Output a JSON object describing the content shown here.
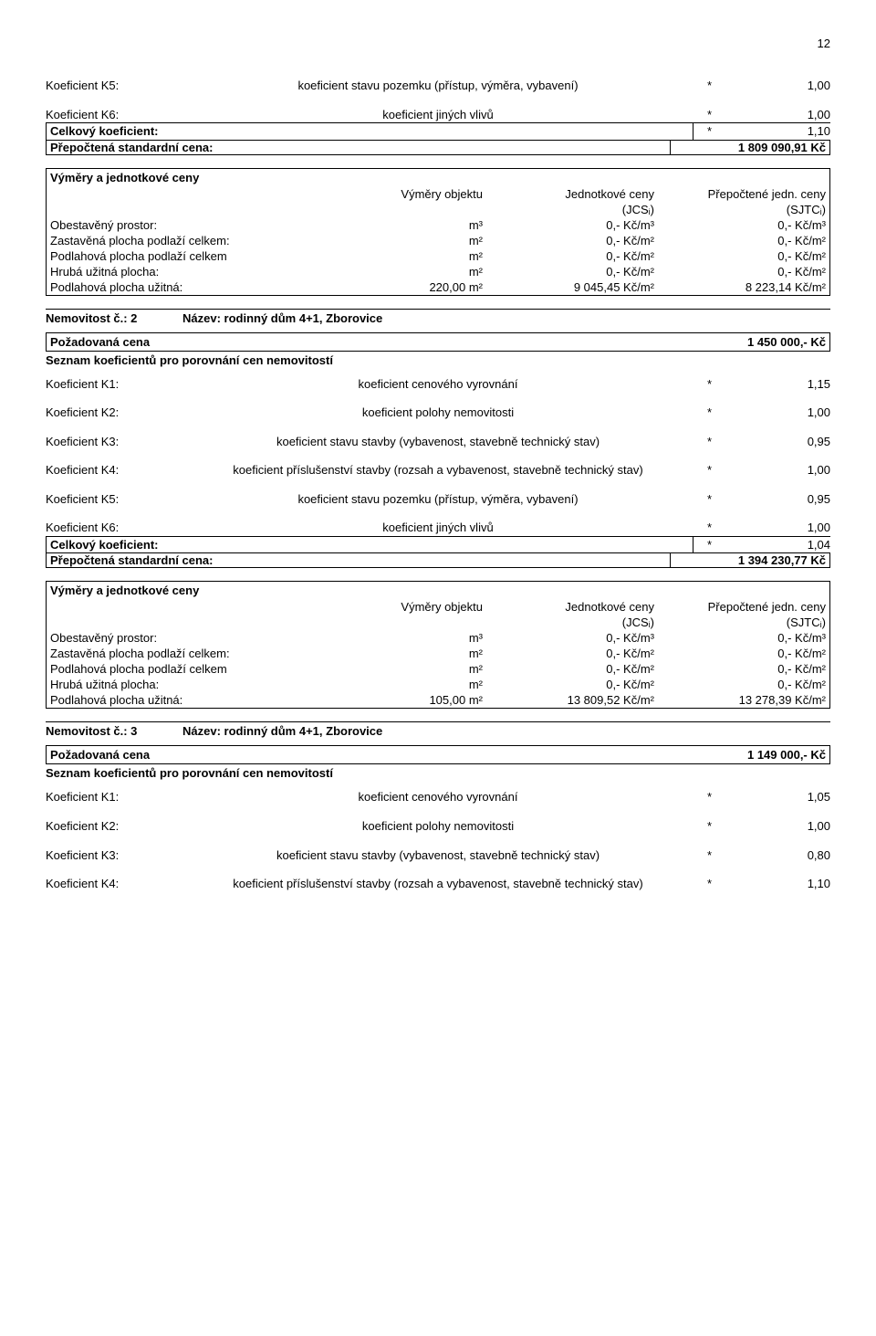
{
  "page_number": "12",
  "section1": {
    "k5": {
      "label": "Koeficient K5:",
      "desc": "koeficient stavu pozemku (přístup, výměra, vybavení)",
      "star": "*",
      "val": "1,00"
    },
    "k6": {
      "label": "Koeficient K6:",
      "desc": "koeficient jiných vlivů",
      "star": "*",
      "val": "1,00"
    },
    "ck": {
      "label": "Celkový koeficient:",
      "star": "*",
      "val": "1,10"
    },
    "psc": {
      "label": "Přepočtená standardní cena:",
      "val": "1 809 090,91 Kč"
    },
    "vm_title": "Výměry a jednotkové ceny",
    "head": {
      "obj": "Výměry objektu",
      "jc": "Jednotkové ceny",
      "jcs": "(JCSᵢ)",
      "pc": "Přepočtené jedn. ceny",
      "sj": "(SJTCᵢ)"
    },
    "rows": [
      {
        "n": "Obestavěný prostor:",
        "obj": "m³",
        "jc": "0,- Kč/m³",
        "pc": "0,- Kč/m³"
      },
      {
        "n": "Zastavěná plocha podlaží celkem:",
        "obj": "m²",
        "jc": "0,- Kč/m²",
        "pc": "0,- Kč/m²"
      },
      {
        "n": "Podlahová plocha podlaží celkem",
        "obj": "m²",
        "jc": "0,- Kč/m²",
        "pc": "0,- Kč/m²"
      },
      {
        "n": "Hrubá užitná plocha:",
        "obj": "m²",
        "jc": "0,- Kč/m²",
        "pc": "0,- Kč/m²"
      },
      {
        "n": "Podlahová plocha užitná:",
        "obj": "220,00 m²",
        "jc": "9 045,45 Kč/m²",
        "pc": "8 223,14 Kč/m²"
      }
    ]
  },
  "nemov2": {
    "left": "Nemovitost č.: 2",
    "right": "Název: rodinný dům 4+1, Zborovice"
  },
  "section2": {
    "pozad": {
      "label": "Požadovaná cena",
      "val": "1 450 000,- Kč"
    },
    "seznam": "Seznam koeficientů pro porovnání cen nemovitostí",
    "k1": {
      "label": "Koeficient K1:",
      "desc": "koeficient cenového vyrovnání",
      "star": "*",
      "val": "1,15"
    },
    "k2": {
      "label": "Koeficient K2:",
      "desc": "koeficient polohy nemovitosti",
      "star": "*",
      "val": "1,00"
    },
    "k3": {
      "label": "Koeficient K3:",
      "desc": "koeficient stavu stavby (vybavenost, stavebně technický stav)",
      "star": "*",
      "val": "0,95"
    },
    "k4": {
      "label": "Koeficient K4:",
      "desc": "koeficient příslušenství stavby (rozsah a vybavenost, stavebně technický stav)",
      "star": "*",
      "val": "1,00"
    },
    "k5": {
      "label": "Koeficient K5:",
      "desc": "koeficient stavu pozemku (přístup, výměra, vybavení)",
      "star": "*",
      "val": "0,95"
    },
    "k6": {
      "label": "Koeficient K6:",
      "desc": "koeficient jiných vlivů",
      "star": "*",
      "val": "1,00"
    },
    "ck": {
      "label": "Celkový koeficient:",
      "star": "*",
      "val": "1,04"
    },
    "psc": {
      "label": "Přepočtená standardní cena:",
      "val": "1 394 230,77 Kč"
    },
    "vm_title": "Výměry a jednotkové ceny",
    "rows": [
      {
        "n": "Obestavěný prostor:",
        "obj": "m³",
        "jc": "0,- Kč/m³",
        "pc": "0,- Kč/m³"
      },
      {
        "n": "Zastavěná plocha podlaží celkem:",
        "obj": "m²",
        "jc": "0,- Kč/m²",
        "pc": "0,- Kč/m²"
      },
      {
        "n": "Podlahová plocha podlaží celkem",
        "obj": "m²",
        "jc": "0,- Kč/m²",
        "pc": "0,- Kč/m²"
      },
      {
        "n": "Hrubá užitná plocha:",
        "obj": "m²",
        "jc": "0,- Kč/m²",
        "pc": "0,- Kč/m²"
      },
      {
        "n": "Podlahová plocha užitná:",
        "obj": "105,00 m²",
        "jc": "13 809,52 Kč/m²",
        "pc": "13 278,39 Kč/m²"
      }
    ]
  },
  "nemov3": {
    "left": "Nemovitost č.: 3",
    "right": "Název: rodinný dům 4+1, Zborovice"
  },
  "section3": {
    "pozad": {
      "label": "Požadovaná cena",
      "val": "1 149 000,- Kč"
    },
    "seznam": "Seznam koeficientů pro porovnání cen nemovitostí",
    "k1": {
      "label": "Koeficient K1:",
      "desc": "koeficient cenového vyrovnání",
      "star": "*",
      "val": "1,05"
    },
    "k2": {
      "label": "Koeficient K2:",
      "desc": "koeficient polohy nemovitosti",
      "star": "*",
      "val": "1,00"
    },
    "k3": {
      "label": "Koeficient K3:",
      "desc": "koeficient stavu stavby (vybavenost, stavebně technický stav)",
      "star": "*",
      "val": "0,80"
    },
    "k4": {
      "label": "Koeficient K4:",
      "desc": "koeficient příslušenství stavby (rozsah a vybavenost, stavebně technický stav)",
      "star": "*",
      "val": "1,10"
    }
  },
  "table_head": {
    "obj": "Výměry objektu",
    "jc": "Jednotkové ceny",
    "jcs": "(JCSᵢ)",
    "pc": "Přepočtené jedn. ceny",
    "sj": "(SJTCᵢ)"
  }
}
